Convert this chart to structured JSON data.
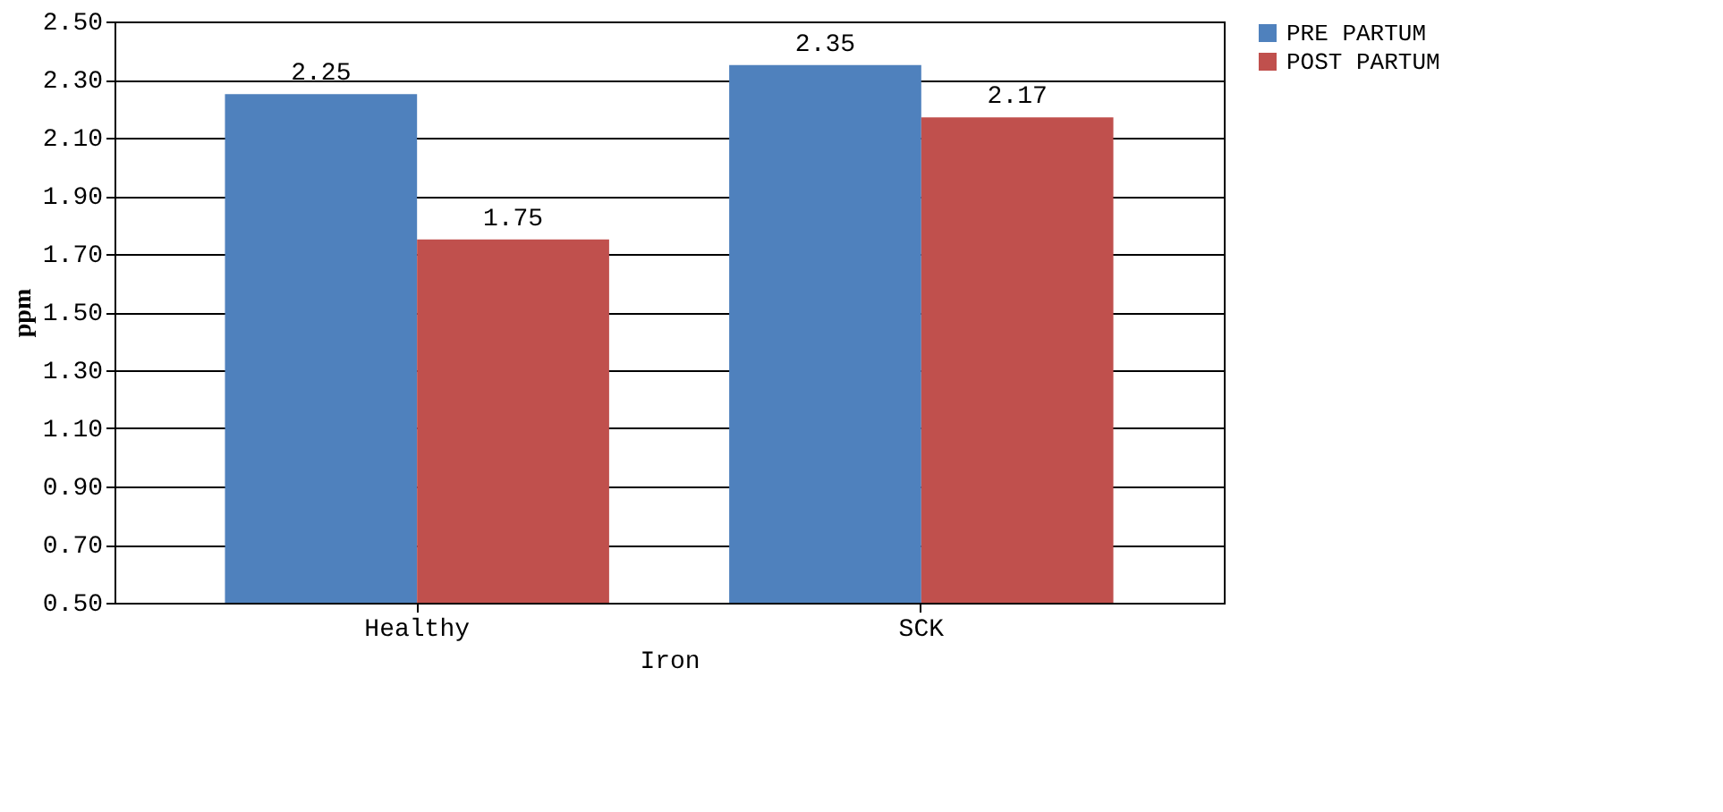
{
  "chart_data": {
    "type": "bar",
    "xlabel": "Iron",
    "ylabel": "ppm",
    "categories": [
      "Healthy",
      "SCK"
    ],
    "series": [
      {
        "name": "PRE PARTUM",
        "color": "#4f81bd",
        "values": [
          2.25,
          2.35
        ]
      },
      {
        "name": "POST PARTUM",
        "color": "#c0504d",
        "values": [
          1.75,
          2.17
        ]
      }
    ],
    "ylim": [
      0.5,
      2.5
    ],
    "yticks": [
      {
        "value": 0.5,
        "label": "0.50"
      },
      {
        "value": 0.7,
        "label": "0.70"
      },
      {
        "value": 0.9,
        "label": "0.90"
      },
      {
        "value": 1.1,
        "label": "1.10"
      },
      {
        "value": 1.3,
        "label": "1.30"
      },
      {
        "value": 1.5,
        "label": "1.50"
      },
      {
        "value": 1.7,
        "label": "1.70"
      },
      {
        "value": 1.9,
        "label": "1.90"
      },
      {
        "value": 2.1,
        "label": "2.10"
      },
      {
        "value": 2.3,
        "label": "2.30"
      },
      {
        "value": 2.5,
        "label": "2.50"
      }
    ],
    "grid": "y",
    "legend": "right",
    "data_labels": true
  }
}
